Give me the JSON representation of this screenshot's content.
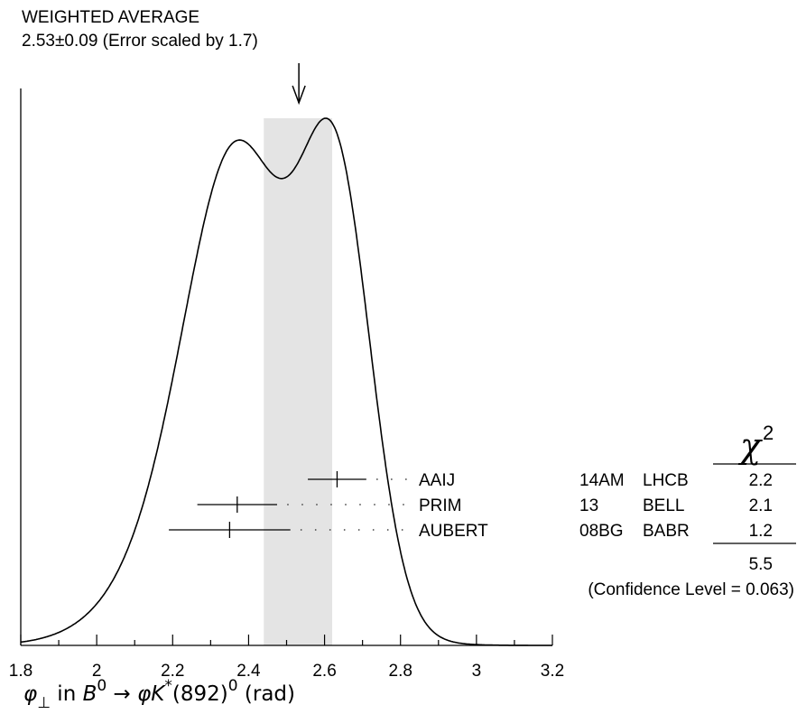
{
  "header": {
    "title": "WEIGHTED AVERAGE",
    "subtitle": "2.53±0.09 (Error scaled by 1.7)"
  },
  "chart_data": {
    "type": "ideogram",
    "weighted_average": 2.53,
    "error": 0.09,
    "error_scale_factor": 1.7,
    "band": [
      2.44,
      2.62
    ],
    "xlim": [
      1.8,
      3.2
    ],
    "xticks": [
      1.8,
      2.0,
      2.2,
      2.4,
      2.6,
      2.8,
      3.0,
      3.2
    ],
    "xtick_labels": [
      "1.8",
      "2",
      "2.2",
      "2.4",
      "2.6",
      "2.8",
      "3",
      "3.2"
    ],
    "xlabel": {
      "phi": "φ",
      "perp": "⊥",
      "in": " in ",
      "B": "B",
      "B_sup": "0",
      "arrow": " → ",
      "phi2": "φ",
      "K": "K",
      "K_sup": "*",
      "mass": "(892)",
      "mass_sup": "0",
      "unit": " (rad)"
    },
    "measurements": [
      {
        "label": "AAIJ",
        "ref": "14AM",
        "experiment": "LHCB",
        "value": 2.633,
        "err_low": 0.077,
        "err_high": 0.077,
        "chi2": "2.2"
      },
      {
        "label": "PRIM",
        "ref": "13",
        "experiment": "BELL",
        "value": 2.37,
        "err_low": 0.105,
        "err_high": 0.105,
        "chi2": "2.1"
      },
      {
        "label": "AUBERT",
        "ref": "08BG",
        "experiment": "BABR",
        "value": 2.35,
        "err_low": 0.16,
        "err_high": 0.16,
        "chi2": "1.2"
      }
    ],
    "chi2_header": "χ",
    "chi2_header_sup": "2",
    "chi2_total": "5.5",
    "confidence_level": "(Confidence Level = 0.063)",
    "ideogram_scale": 1.2
  },
  "colors": {
    "band": "#e4e4e4",
    "ink": "#000000",
    "dots": "#444444"
  }
}
